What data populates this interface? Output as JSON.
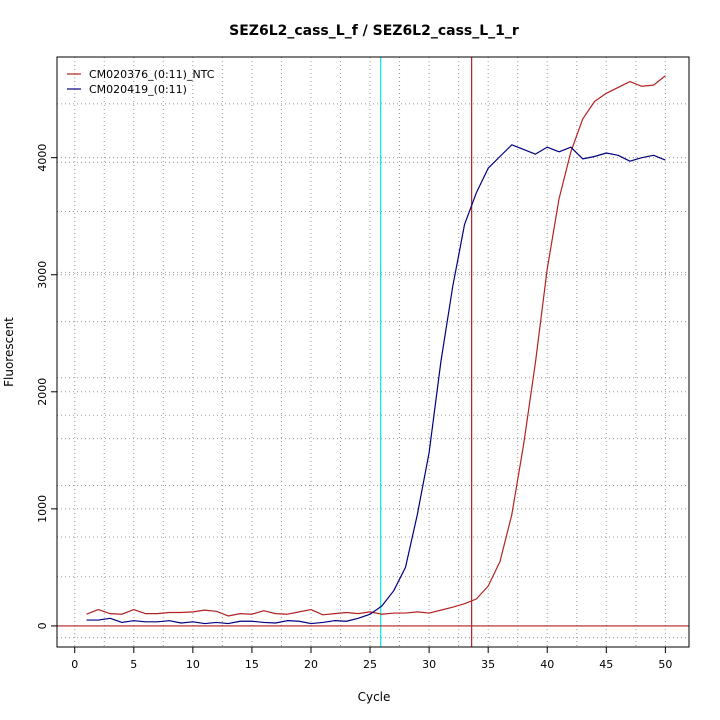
{
  "chart_data": {
    "type": "line",
    "title": "SEZ6L2_cass_L_f / SEZ6L2_cass_L_1_r",
    "xlabel": "Cycle",
    "ylabel": "Fluorescent",
    "xlim": [
      -1.5,
      52
    ],
    "ylim": [
      -180,
      4860
    ],
    "xticks": [
      0,
      5,
      10,
      15,
      20,
      25,
      30,
      35,
      40,
      45,
      50
    ],
    "yticks": [
      0,
      1000,
      2000,
      3000,
      4000
    ],
    "grid": "dotted",
    "grid_x": [
      2.5,
      7.5,
      12.5,
      17.5,
      22.5,
      27.5,
      32.5,
      37.5,
      42.5,
      47.5
    ],
    "grid_y": [
      -100,
      420,
      760,
      1200,
      1600,
      1800,
      2120,
      2600,
      3020,
      3540,
      3960,
      4460
    ],
    "legend_position": "top-left",
    "threshold": {
      "value": 0,
      "color": "#b22222"
    },
    "vlines": [
      {
        "x": 25.9,
        "color": "#00e5ee"
      },
      {
        "x": 33.6,
        "color": "#b22222"
      }
    ],
    "series": [
      {
        "name": "CM020376_(0:11)_NTC",
        "color": "#b22222",
        "x": [
          1,
          2,
          3,
          4,
          5,
          6,
          7,
          8,
          9,
          10,
          11,
          12,
          13,
          14,
          15,
          16,
          17,
          18,
          19,
          20,
          21,
          22,
          23,
          24,
          25,
          26,
          27,
          28,
          29,
          30,
          31,
          32,
          33,
          34,
          35,
          36,
          37,
          38,
          39,
          40,
          41,
          42,
          43,
          44,
          45,
          46,
          47,
          48,
          49,
          50
        ],
        "values": [
          100,
          140,
          105,
          100,
          140,
          105,
          105,
          115,
          115,
          120,
          135,
          125,
          85,
          105,
          100,
          130,
          105,
          100,
          120,
          140,
          95,
          105,
          115,
          105,
          120,
          100,
          110,
          110,
          120,
          110,
          135,
          160,
          190,
          230,
          340,
          550,
          950,
          1550,
          2250,
          3050,
          3650,
          4050,
          4330,
          4480,
          4550,
          4600,
          4650,
          4610,
          4620,
          4700
        ]
      },
      {
        "name": "CM020419_(0:11)",
        "color": "#000080",
        "x": [
          1,
          2,
          3,
          4,
          5,
          6,
          7,
          8,
          9,
          10,
          11,
          12,
          13,
          14,
          15,
          16,
          17,
          18,
          19,
          20,
          21,
          22,
          23,
          24,
          25,
          26,
          27,
          28,
          29,
          30,
          31,
          32,
          33,
          34,
          35,
          36,
          37,
          38,
          39,
          40,
          41,
          42,
          43,
          44,
          45,
          46,
          47,
          48,
          49,
          50
        ],
        "values": [
          50,
          50,
          65,
          30,
          45,
          35,
          35,
          45,
          25,
          35,
          20,
          30,
          20,
          40,
          40,
          30,
          25,
          45,
          40,
          20,
          30,
          45,
          40,
          65,
          100,
          170,
          300,
          500,
          950,
          1480,
          2260,
          2900,
          3430,
          3700,
          3910,
          4010,
          4110,
          4070,
          4030,
          4090,
          4050,
          4090,
          3990,
          4010,
          4040,
          4020,
          3970,
          4000,
          4020,
          3980
        ]
      }
    ]
  }
}
